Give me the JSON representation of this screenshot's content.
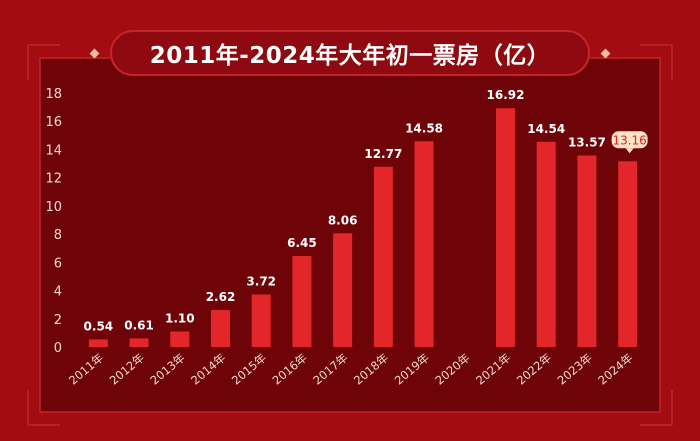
{
  "title": "2011年-2024年大年初一票房（亿）",
  "colors": {
    "background": "#a30d12",
    "panel": "#6f0408",
    "bar": "#e32629",
    "axis_text": "#f3d8d2",
    "highlight_label_bg": "#ffe3c6",
    "highlight_label_text": "#d8242a"
  },
  "chart_data": {
    "type": "bar",
    "title": "2011年-2024年大年初一票房（亿）",
    "categories": [
      "2011年",
      "2012年",
      "2013年",
      "2014年",
      "2015年",
      "2016年",
      "2017年",
      "2018年",
      "2019年",
      "2020年",
      "2021年",
      "2022年",
      "2023年",
      "2024年"
    ],
    "values": [
      0.54,
      0.61,
      1.1,
      2.62,
      3.72,
      6.45,
      8.06,
      12.77,
      14.58,
      null,
      16.92,
      14.54,
      13.57,
      13.16
    ],
    "value_labels": [
      "0.54",
      "0.61",
      "1.10",
      "2.62",
      "3.72",
      "6.45",
      "8.06",
      "12.77",
      "14.58",
      "",
      "16.92",
      "14.54",
      "13.57",
      "13.16"
    ],
    "highlighted_category": "2024年",
    "ylim": [
      0,
      18
    ],
    "yticks": [
      0,
      2,
      4,
      6,
      8,
      10,
      12,
      14,
      16,
      18
    ],
    "xlabel": "",
    "ylabel": "",
    "grid": false,
    "legend": "none"
  }
}
